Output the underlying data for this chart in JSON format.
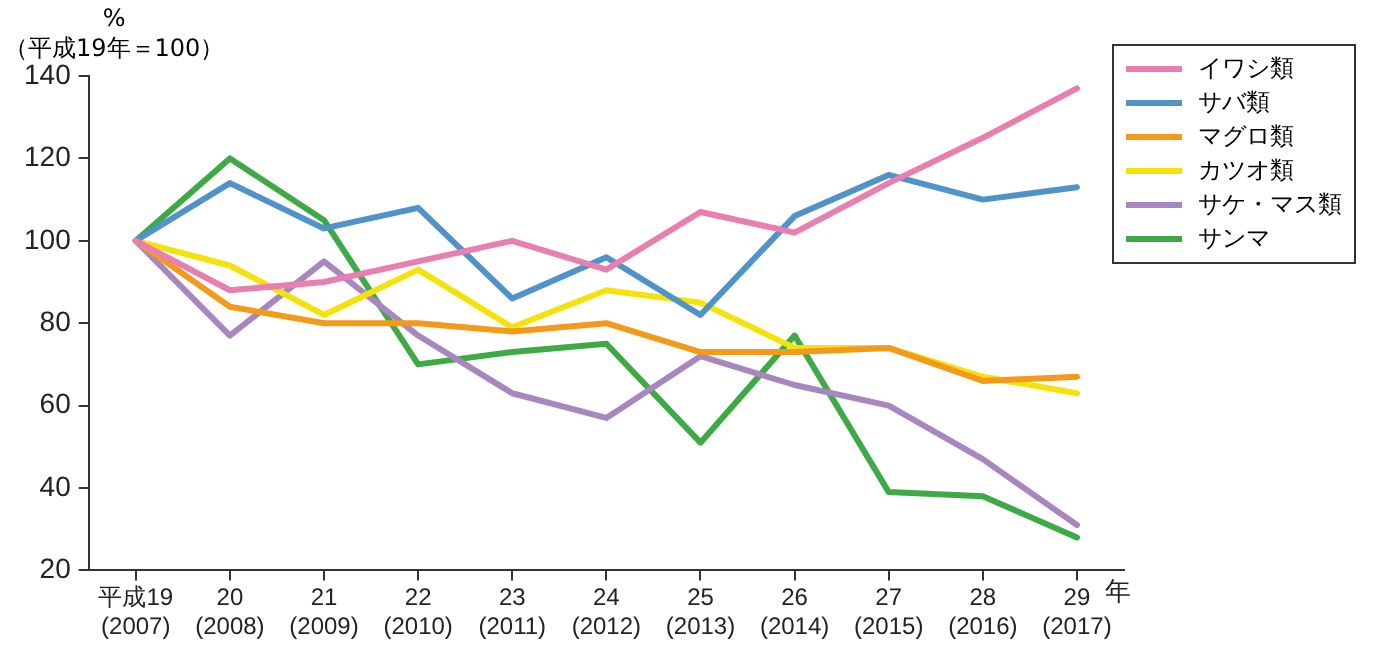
{
  "chart_data": {
    "type": "line",
    "ylabel": "%\n（平成19年＝100）",
    "xlabel": "年",
    "categories": [
      "平成19\n(2007)",
      "20\n(2008)",
      "21\n(2009)",
      "22\n(2010)",
      "23\n(2011)",
      "24\n(2012)",
      "25\n(2013)",
      "26\n(2014)",
      "27\n(2015)",
      "28\n(2016)",
      "29\n(2017)"
    ],
    "series": [
      {
        "name": "イワシ類",
        "color": "#e97fb0",
        "values": [
          100,
          88,
          90,
          95,
          100,
          93,
          107,
          102,
          114,
          125,
          137
        ]
      },
      {
        "name": "サバ類",
        "color": "#4f93c8",
        "values": [
          100,
          114,
          103,
          108,
          86,
          96,
          82,
          106,
          116,
          110,
          113
        ]
      },
      {
        "name": "マグロ類",
        "color": "#f39a1a",
        "values": [
          100,
          84,
          80,
          80,
          78,
          80,
          73,
          73,
          74,
          66,
          67
        ]
      },
      {
        "name": "カツオ類",
        "color": "#f5e20a",
        "values": [
          100,
          94,
          82,
          93,
          79,
          88,
          85,
          74,
          74,
          67,
          63
        ]
      },
      {
        "name": "サケ・マス類",
        "color": "#a886bf",
        "values": [
          100,
          77,
          95,
          77,
          63,
          57,
          72,
          65,
          60,
          47,
          31
        ]
      },
      {
        "name": "サンマ",
        "color": "#3daa45",
        "values": [
          100,
          120,
          105,
          70,
          73,
          75,
          51,
          77,
          39,
          38,
          28
        ]
      }
    ],
    "ylim": [
      20,
      140
    ],
    "yticks": [
      20,
      40,
      60,
      80,
      100,
      120,
      140
    ],
    "grid": false,
    "legend": "top right",
    "marker": "none",
    "line_style": "solid"
  }
}
